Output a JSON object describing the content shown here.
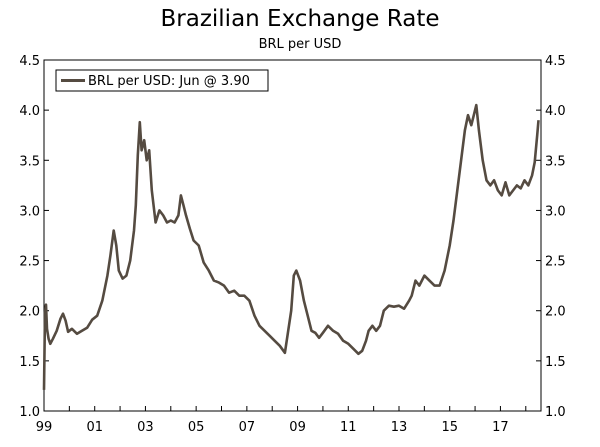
{
  "chart_data": {
    "type": "line",
    "title": "Brazilian Exchange Rate",
    "subtitle": "BRL per USD",
    "xlabel": "",
    "ylabel": "",
    "xlim": [
      1999,
      2018.6
    ],
    "ylim": [
      1.0,
      4.5
    ],
    "y_ticks": [
      "1.0",
      "1.5",
      "2.0",
      "2.5",
      "3.0",
      "3.5",
      "4.0",
      "4.5"
    ],
    "y_tick_values": [
      1.0,
      1.5,
      2.0,
      2.5,
      3.0,
      3.5,
      4.0,
      4.5
    ],
    "x_ticks": [
      "99",
      "01",
      "03",
      "05",
      "07",
      "09",
      "11",
      "13",
      "15",
      "17"
    ],
    "x_tick_values": [
      1999,
      2001,
      2003,
      2005,
      2007,
      2009,
      2011,
      2013,
      2015,
      2017
    ],
    "series": [
      {
        "name": "BRL per USD: Jun @ 3.90",
        "color": "#554b41",
        "x": [
          1999.0,
          1999.04,
          1999.08,
          1999.12,
          1999.18,
          1999.25,
          1999.35,
          1999.5,
          1999.65,
          1999.75,
          1999.85,
          1999.95,
          2000.1,
          2000.3,
          2000.5,
          2000.7,
          2000.9,
          2001.1,
          2001.3,
          2001.5,
          2001.62,
          2001.75,
          2001.85,
          2001.95,
          2002.1,
          2002.25,
          2002.4,
          2002.55,
          2002.62,
          2002.7,
          2002.78,
          2002.85,
          2002.95,
          2003.05,
          2003.15,
          2003.25,
          2003.4,
          2003.55,
          2003.7,
          2003.85,
          2004.0,
          2004.15,
          2004.3,
          2004.4,
          2004.5,
          2004.6,
          2004.75,
          2004.9,
          2005.1,
          2005.3,
          2005.5,
          2005.7,
          2005.9,
          2006.1,
          2006.3,
          2006.5,
          2006.7,
          2006.9,
          2007.1,
          2007.3,
          2007.5,
          2007.7,
          2007.9,
          2008.1,
          2008.3,
          2008.5,
          2008.62,
          2008.75,
          2008.85,
          2008.95,
          2009.1,
          2009.25,
          2009.4,
          2009.55,
          2009.7,
          2009.85,
          2010.0,
          2010.2,
          2010.4,
          2010.6,
          2010.8,
          2011.0,
          2011.2,
          2011.4,
          2011.55,
          2011.7,
          2011.8,
          2011.95,
          2012.1,
          2012.25,
          2012.4,
          2012.6,
          2012.8,
          2013.0,
          2013.2,
          2013.4,
          2013.5,
          2013.65,
          2013.8,
          2014.0,
          2014.2,
          2014.4,
          2014.6,
          2014.8,
          2015.0,
          2015.15,
          2015.3,
          2015.45,
          2015.6,
          2015.72,
          2015.85,
          2015.95,
          2016.05,
          2016.15,
          2016.3,
          2016.45,
          2016.6,
          2016.75,
          2016.9,
          2017.05,
          2017.2,
          2017.35,
          2017.5,
          2017.65,
          2017.8,
          2017.95,
          2018.1,
          2018.25,
          2018.35,
          2018.45,
          2018.5
        ],
        "values": [
          1.21,
          1.98,
          2.06,
          1.82,
          1.72,
          1.67,
          1.72,
          1.8,
          1.92,
          1.97,
          1.9,
          1.79,
          1.82,
          1.77,
          1.8,
          1.83,
          1.91,
          1.95,
          2.1,
          2.35,
          2.55,
          2.8,
          2.65,
          2.4,
          2.32,
          2.35,
          2.5,
          2.8,
          3.05,
          3.55,
          3.88,
          3.6,
          3.7,
          3.5,
          3.6,
          3.2,
          2.88,
          3.0,
          2.95,
          2.88,
          2.9,
          2.88,
          2.95,
          3.15,
          3.05,
          2.95,
          2.82,
          2.7,
          2.65,
          2.48,
          2.4,
          2.3,
          2.28,
          2.25,
          2.18,
          2.2,
          2.15,
          2.15,
          2.1,
          1.95,
          1.85,
          1.8,
          1.75,
          1.7,
          1.65,
          1.58,
          1.78,
          2.0,
          2.35,
          2.4,
          2.3,
          2.1,
          1.95,
          1.8,
          1.78,
          1.73,
          1.78,
          1.85,
          1.8,
          1.77,
          1.7,
          1.67,
          1.62,
          1.57,
          1.6,
          1.7,
          1.8,
          1.85,
          1.8,
          1.85,
          2.0,
          2.05,
          2.04,
          2.05,
          2.02,
          2.1,
          2.15,
          2.3,
          2.25,
          2.35,
          2.3,
          2.25,
          2.25,
          2.4,
          2.65,
          2.9,
          3.2,
          3.5,
          3.8,
          3.95,
          3.85,
          3.95,
          4.05,
          3.8,
          3.5,
          3.3,
          3.25,
          3.3,
          3.2,
          3.15,
          3.28,
          3.15,
          3.2,
          3.25,
          3.22,
          3.3,
          3.25,
          3.35,
          3.48,
          3.75,
          3.9
        ]
      }
    ],
    "legend": {
      "label": "BRL per USD: Jun @ 3.90",
      "position": "top-left"
    },
    "grid": false
  }
}
